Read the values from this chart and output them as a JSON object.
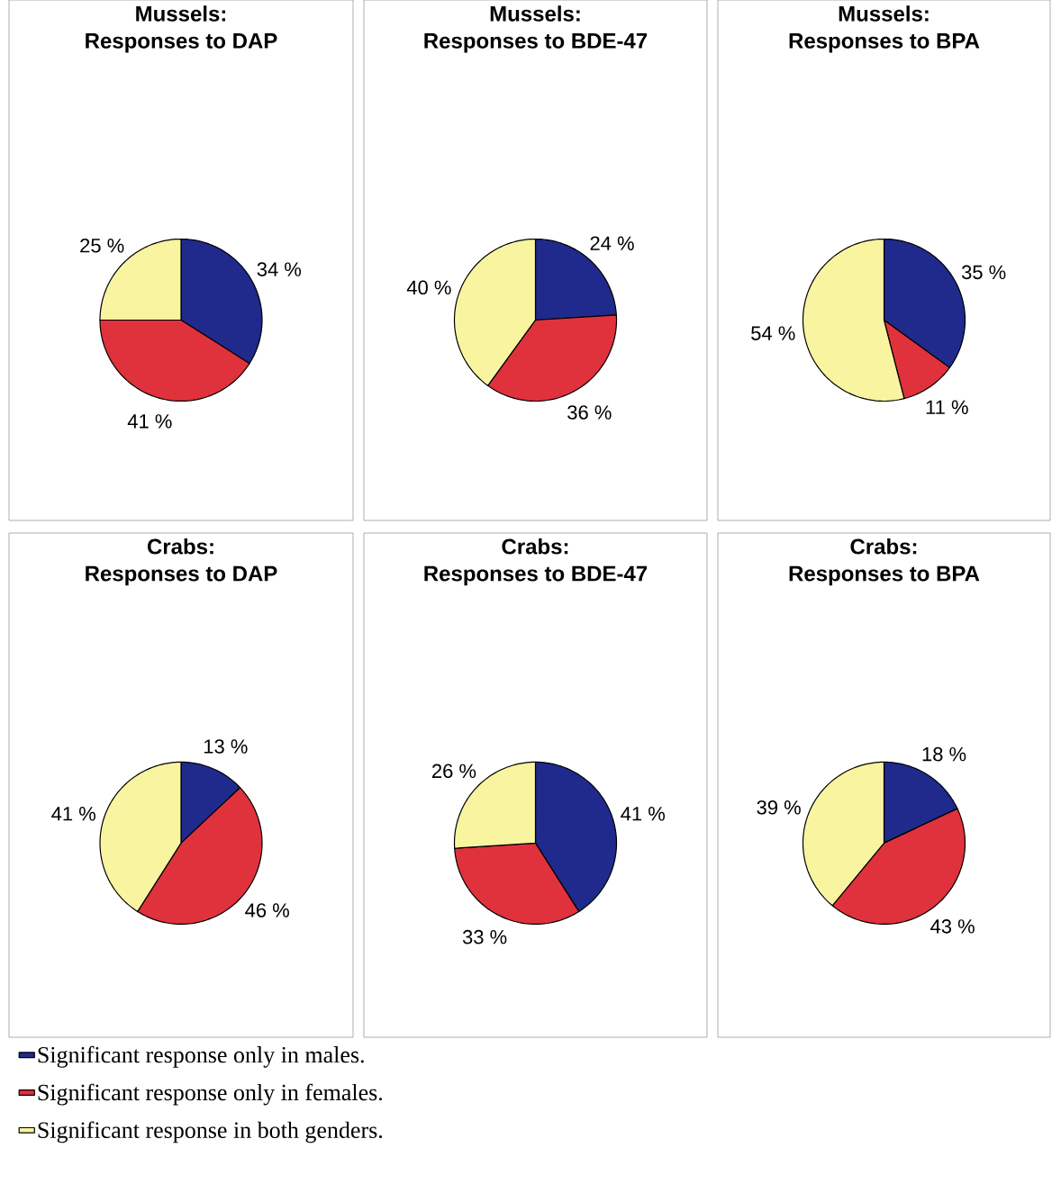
{
  "chart_data": [
    {
      "type": "pie",
      "title": "Mussels:",
      "subtitle": "Responses to DAP",
      "categories": [
        null,
        null,
        null
      ],
      "values": [
        34,
        41,
        25
      ],
      "value_labels": [
        "34 %",
        "41 %",
        "25 %"
      ],
      "colors": [
        "#1f2a8c",
        "#e0323c",
        "#f8f4a0"
      ]
    },
    {
      "type": "pie",
      "title": "Mussels:",
      "subtitle": "Responses to BDE-47",
      "categories": [
        null,
        null,
        null
      ],
      "values": [
        24,
        36,
        40
      ],
      "value_labels": [
        "24 %",
        "36 %",
        "40 %"
      ],
      "colors": [
        "#1f2a8c",
        "#e0323c",
        "#f8f4a0"
      ]
    },
    {
      "type": "pie",
      "title": "Mussels:",
      "subtitle": "Responses to BPA",
      "categories": [
        null,
        null,
        null
      ],
      "values": [
        35,
        11,
        54
      ],
      "value_labels": [
        "35 %",
        "11 %",
        "54 %"
      ],
      "colors": [
        "#1f2a8c",
        "#e0323c",
        "#f8f4a0"
      ]
    },
    {
      "type": "pie",
      "title": "Crabs:",
      "subtitle": "Responses to DAP",
      "categories": [
        null,
        null,
        null
      ],
      "values": [
        13,
        46,
        41
      ],
      "value_labels": [
        "13 %",
        "46 %",
        "41 %"
      ],
      "colors": [
        "#1f2a8c",
        "#e0323c",
        "#f8f4a0"
      ]
    },
    {
      "type": "pie",
      "title": "Crabs:",
      "subtitle": "Responses to BDE-47",
      "categories": [
        null,
        null,
        null
      ],
      "values": [
        41,
        33,
        26
      ],
      "value_labels": [
        "41 %",
        "33 %",
        "26 %"
      ],
      "colors": [
        "#1f2a8c",
        "#e0323c",
        "#f8f4a0"
      ]
    },
    {
      "type": "pie",
      "title": "Crabs:",
      "subtitle": "Responses to BPA",
      "categories": [
        "Significant response only in males.",
        "Significant response only in females.",
        "Significant response in both genders."
      ],
      "values": [
        18,
        43,
        39
      ],
      "value_labels": [
        "18 %",
        "43 %",
        "39 %"
      ],
      "colors": [
        "#1f2a8c",
        "#e0323c",
        "#f8f4a0"
      ],
      "legend": "bottom"
    }
  ]
}
